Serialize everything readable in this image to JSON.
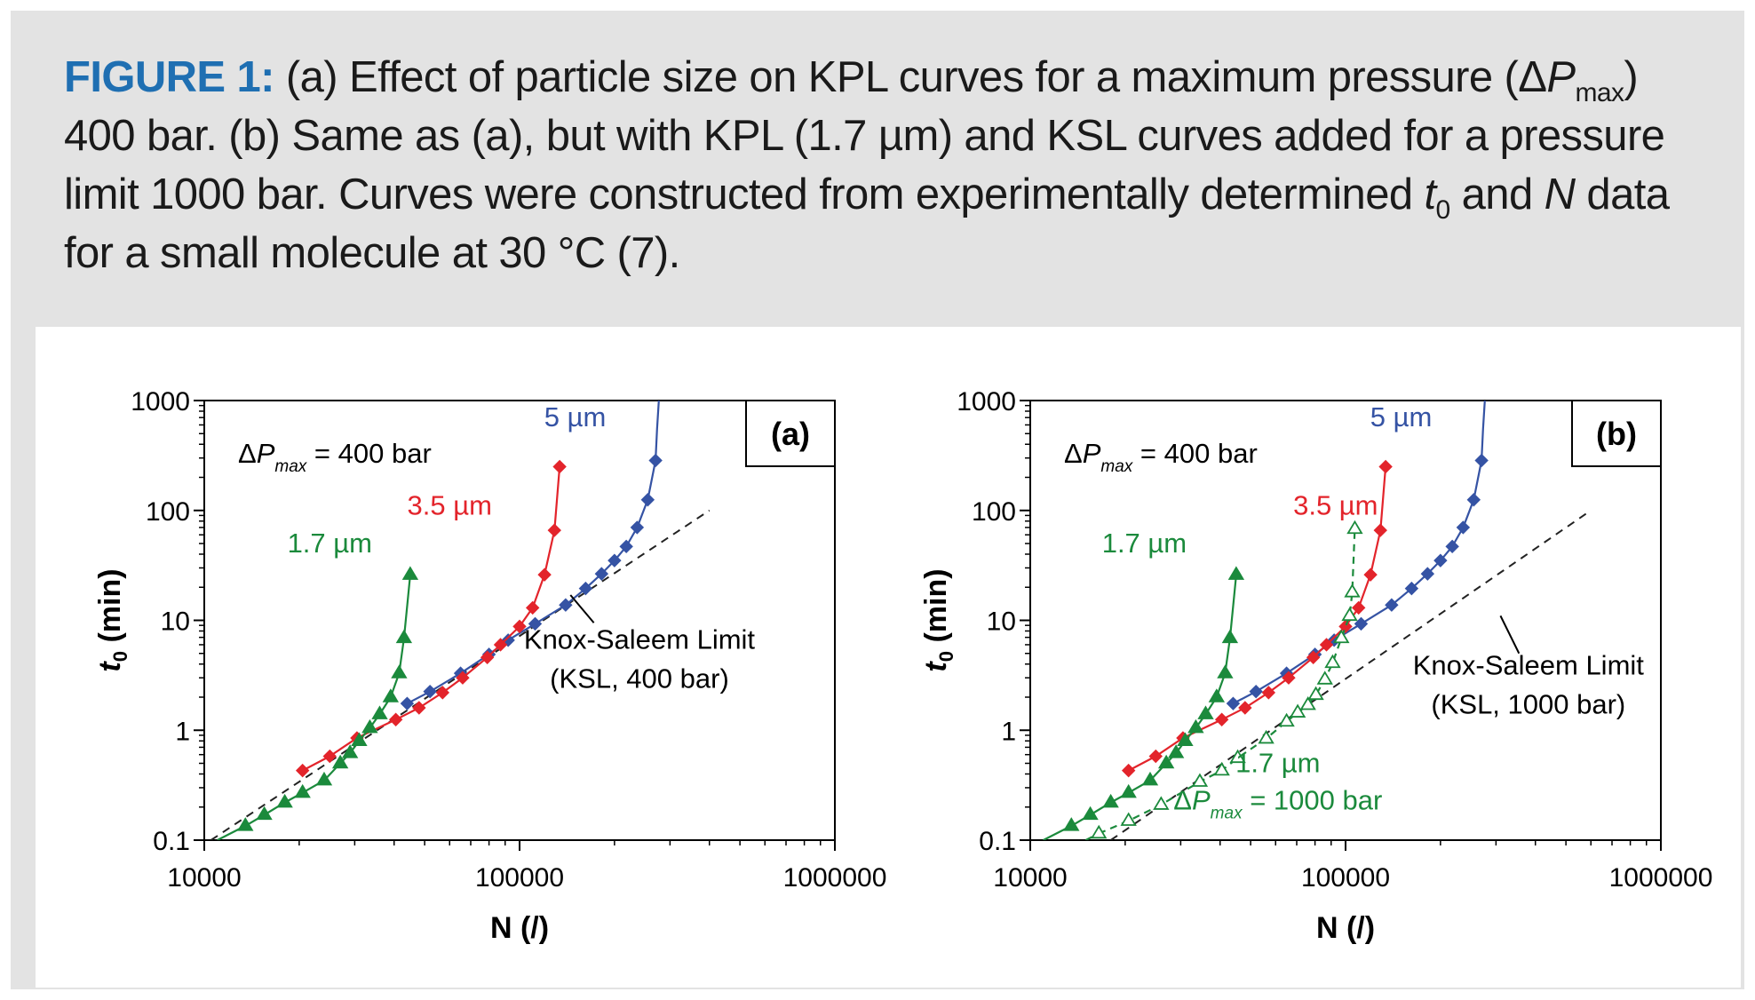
{
  "caption": {
    "label": "FIGURE 1:",
    "part1": " (a) Effect of particle size on KPL curves for a maximum pressure (Δ",
    "p_symbol": "P",
    "p_sub": "max",
    "part2": ") 400 bar. (b) Same as (a), but with KPL (1.7 µm) and KSL curves added for a pressure limit 1000 bar. Curves were constructed from experimentally determined ",
    "t_symbol": "t",
    "t_sub": "0",
    "part3": " and ",
    "n_symbol": "N",
    "part4": " data for a small molecule at 30 °C (7)."
  },
  "colors": {
    "blue": "#3553a4",
    "red": "#e3242b",
    "green": "#1b8a3c",
    "dash": "#222222",
    "caption_label": "#1f6fb2"
  },
  "chart_data": [
    {
      "type": "line",
      "panel_label": "(a)",
      "xscale": "log",
      "yscale": "log",
      "xlim": [
        10000,
        1000000
      ],
      "ylim": [
        0.1,
        1000
      ],
      "xticks": [
        10000,
        100000,
        1000000
      ],
      "xtick_labels": [
        "10000",
        "100000",
        "1000000"
      ],
      "yticks": [
        0.1,
        1,
        10,
        100,
        1000
      ],
      "ytick_labels": [
        "0.1",
        "1",
        "10",
        "100",
        "1000"
      ],
      "xlabel": "N (/)",
      "ylabel_symbol": "t",
      "ylabel_sub": "0",
      "ylabel_unit": "(min)",
      "pressure_prefix": "ΔP",
      "pressure_sub": "max",
      "pressure_value": " = 400 bar",
      "series": [
        {
          "name": "5 µm",
          "color": "blue",
          "marker": "diamond",
          "dashed": false,
          "filled": true,
          "label_x": 150000,
          "label_y": 700,
          "x": [
            44000,
            52000,
            65000,
            80000,
            92000,
            112000,
            140000,
            162000,
            182000,
            200000,
            218000,
            236000,
            255000,
            270000
          ],
          "y": [
            1.75,
            2.25,
            3.3,
            4.9,
            6.6,
            9.3,
            13.8,
            19.5,
            26.5,
            35,
            47,
            70,
            125,
            285
          ],
          "curve_x": [
            270000,
            273000,
            276500
          ],
          "curve_y": [
            285,
            550,
            1000
          ]
        },
        {
          "name": "3.5 µm",
          "color": "red",
          "marker": "diamond",
          "dashed": false,
          "filled": true,
          "label_x": 60000,
          "label_y": 110,
          "x": [
            20500,
            25000,
            30500,
            40500,
            48000,
            57000,
            66000,
            79000,
            87000,
            100000,
            110000,
            120000,
            129000,
            134000
          ],
          "y": [
            0.43,
            0.58,
            0.85,
            1.25,
            1.6,
            2.2,
            3.0,
            4.6,
            6.0,
            8.8,
            13,
            26,
            66,
            250
          ],
          "curve_x": [],
          "curve_y": []
        },
        {
          "name": "1.7 µm",
          "color": "green",
          "marker": "triangle",
          "dashed": false,
          "filled": true,
          "label_x": 25000,
          "label_y": 50,
          "x": [
            13500,
            15500,
            18000,
            20500,
            24000,
            27000,
            29000,
            31000,
            33500,
            36000,
            39000,
            41500,
            43000,
            45000
          ],
          "y": [
            0.135,
            0.17,
            0.22,
            0.27,
            0.35,
            0.5,
            0.62,
            0.8,
            1.05,
            1.4,
            2.0,
            3.3,
            6.9,
            26
          ],
          "curve_x": [
            11000,
            13500
          ],
          "curve_y": [
            0.1,
            0.135
          ]
        }
      ],
      "ksl": {
        "x": [
          10500,
          400000
        ],
        "y": [
          0.1,
          100
        ],
        "label_line1": "Knox-Saleem Limit",
        "label_line2": "(KSL, 400 bar)",
        "label_x": 240000,
        "label_y": 5.5,
        "pointer_from": [
          145000,
          17
        ],
        "pointer_to": [
          172000,
          9.5
        ]
      }
    },
    {
      "type": "line",
      "panel_label": "(b)",
      "xscale": "log",
      "yscale": "log",
      "xlim": [
        10000,
        1000000
      ],
      "ylim": [
        0.1,
        1000
      ],
      "xticks": [
        10000,
        100000,
        1000000
      ],
      "xtick_labels": [
        "10000",
        "100000",
        "1000000"
      ],
      "yticks": [
        0.1,
        1,
        10,
        100,
        1000
      ],
      "ytick_labels": [
        "0.1",
        "1",
        "10",
        "100",
        "1000"
      ],
      "xlabel": "N (/)",
      "ylabel_symbol": "t",
      "ylabel_sub": "0",
      "ylabel_unit": "(min)",
      "pressure_prefix": "ΔP",
      "pressure_sub": "max",
      "pressure_value": " = 400 bar",
      "series": [
        {
          "name": "5 µm",
          "color": "blue",
          "marker": "diamond",
          "dashed": false,
          "filled": true,
          "label_x": 150000,
          "label_y": 700,
          "x": [
            44000,
            52000,
            65000,
            80000,
            92000,
            112000,
            140000,
            162000,
            182000,
            200000,
            218000,
            236000,
            255000,
            270000
          ],
          "y": [
            1.75,
            2.25,
            3.3,
            4.9,
            6.6,
            9.3,
            13.8,
            19.5,
            26.5,
            35,
            47,
            70,
            125,
            285
          ],
          "curve_x": [
            270000,
            273000,
            276500
          ],
          "curve_y": [
            285,
            550,
            1000
          ]
        },
        {
          "name": "3.5 µm",
          "color": "red",
          "marker": "diamond",
          "dashed": false,
          "filled": true,
          "label_x": 93000,
          "label_y": 110,
          "x": [
            20500,
            25000,
            30500,
            40500,
            48000,
            57000,
            66000,
            79000,
            87000,
            100000,
            110000,
            120000,
            129000,
            134000
          ],
          "y": [
            0.43,
            0.58,
            0.85,
            1.25,
            1.6,
            2.2,
            3.0,
            4.6,
            6.0,
            8.8,
            13,
            26,
            66,
            250
          ],
          "curve_x": [],
          "curve_y": []
        },
        {
          "name": "1.7 µm",
          "color": "green",
          "marker": "triangle",
          "dashed": false,
          "filled": true,
          "label_x": 23000,
          "label_y": 50,
          "x": [
            13500,
            15500,
            18000,
            20500,
            24000,
            27000,
            29000,
            31000,
            33500,
            36000,
            39000,
            41500,
            43000,
            45000
          ],
          "y": [
            0.135,
            0.17,
            0.22,
            0.27,
            0.35,
            0.5,
            0.62,
            0.8,
            1.05,
            1.4,
            2.0,
            3.3,
            6.9,
            26
          ],
          "curve_x": [
            11000,
            13500
          ],
          "curve_y": [
            0.1,
            0.135
          ]
        },
        {
          "name": "1.7 µm",
          "color": "green",
          "marker": "triangle",
          "dashed": true,
          "filled": false,
          "label_x": 61000,
          "label_y": 0.5,
          "x": [
            16500,
            20500,
            26000,
            34500,
            40500,
            45500,
            56000,
            65000,
            70500,
            76000,
            80500,
            86000,
            91000,
            97000,
            103000,
            105000,
            107000
          ],
          "y": [
            0.115,
            0.15,
            0.21,
            0.34,
            0.43,
            0.56,
            0.84,
            1.2,
            1.45,
            1.7,
            2.1,
            2.9,
            4.1,
            6.9,
            11,
            18,
            68
          ],
          "curve_x": [
            15000,
            16500
          ],
          "curve_y": [
            0.1,
            0.115
          ]
        }
      ],
      "annotation_pressure_prefix": "ΔP",
      "annotation_pressure_sub": "max",
      "annotation_pressure_value": " = 1000 bar",
      "ksl": {
        "x": [
          18000,
          600000
        ],
        "y": [
          0.1,
          100
        ],
        "label_line1": "Knox-Saleem Limit",
        "label_line2": "(KSL, 1000 bar)",
        "label_x": 380000,
        "label_y": 3.2,
        "pointer_from": [
          310000,
          11
        ],
        "pointer_to": [
          355000,
          5
        ]
      }
    }
  ]
}
